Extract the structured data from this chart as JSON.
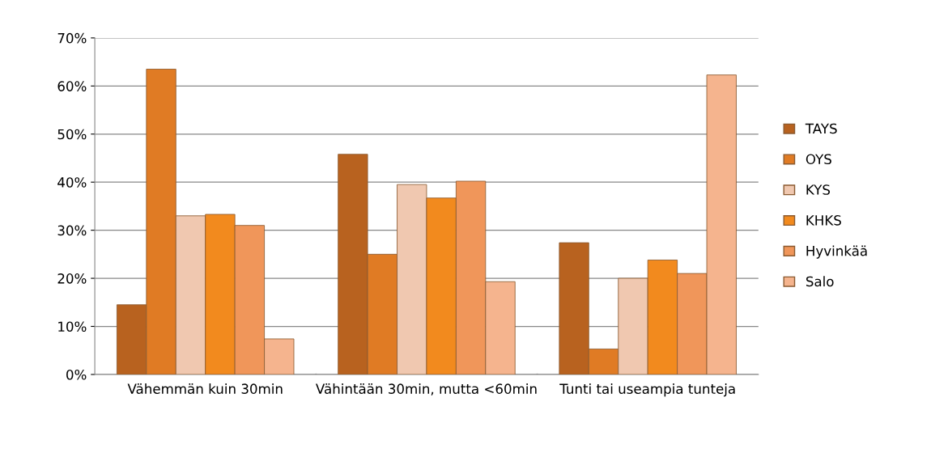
{
  "chart_data": {
    "type": "bar",
    "categories": [
      "Vähemmän kuin 30min",
      "Vähintään 30min, mutta <60min",
      "Tunti tai useampia tunteja"
    ],
    "series": [
      {
        "name": "TAYS",
        "color": "#b8621f",
        "values": [
          14.5,
          45.8,
          27.4
        ]
      },
      {
        "name": "OYS",
        "color": "#e07b24",
        "values": [
          63.5,
          25,
          5.3
        ]
      },
      {
        "name": "KYS",
        "color": "#f0c8b0",
        "values": [
          33,
          39.5,
          20
        ]
      },
      {
        "name": "KHKS",
        "color": "#f28a1e",
        "values": [
          33.3,
          36.7,
          23.8
        ]
      },
      {
        "name": "Hyvinkää",
        "color": "#f0965a",
        "values": [
          31,
          40.2,
          21
        ]
      },
      {
        "name": "Salo",
        "color": "#f5b48e",
        "values": [
          7.4,
          19.3,
          62.3
        ]
      }
    ],
    "ylim": [
      0,
      70
    ],
    "yticks": [
      {
        "value": 0,
        "label": "0%"
      },
      {
        "value": 10,
        "label": "10%"
      },
      {
        "value": 20,
        "label": "20%"
      },
      {
        "value": 30,
        "label": "30%"
      },
      {
        "value": 40,
        "label": "40%"
      },
      {
        "value": 50,
        "label": "50%"
      },
      {
        "value": 60,
        "label": "60%"
      },
      {
        "value": 70,
        "label": "70%"
      }
    ],
    "grid": "y",
    "legend": "right"
  }
}
